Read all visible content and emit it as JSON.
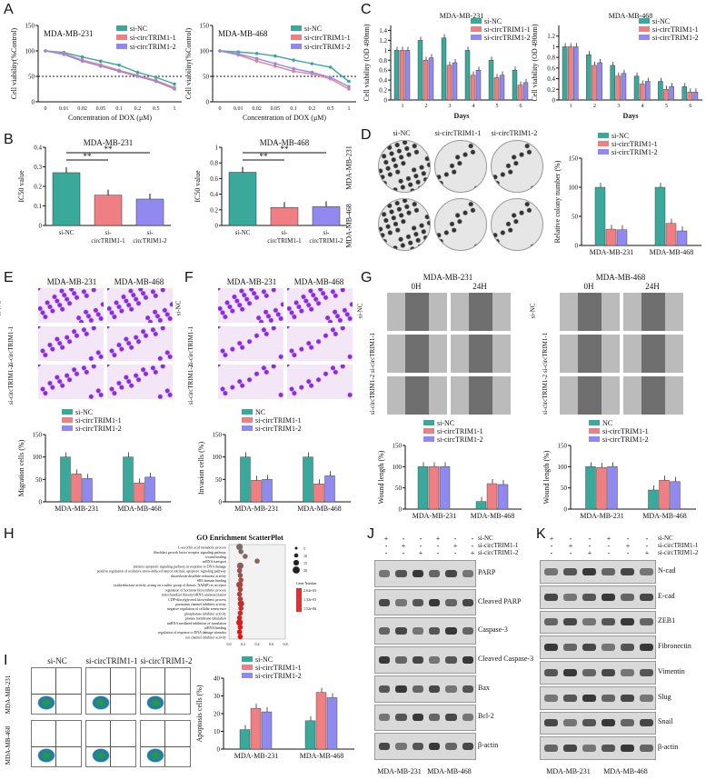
{
  "panel_letters": {
    "A": "A",
    "B": "B",
    "C": "C",
    "D": "D",
    "E": "E",
    "F": "F",
    "G": "G",
    "H": "H",
    "I": "I",
    "J": "J",
    "K": "K"
  },
  "colors": {
    "si_nc": "#3aa89a",
    "si_1": "#f07f83",
    "si_2": "#8f89f0"
  },
  "legend_si": [
    "si-NC",
    "si-circTRIM1-1",
    "si-circTRIM1-2"
  ],
  "legend_nc": [
    "NC",
    "si-circTRIM1-1",
    "si-circTRIM1-2"
  ],
  "chart_data": [
    {
      "id": "A1",
      "type": "line",
      "title": "MDA-MB-231",
      "ylabel": "Cell viability(%Control)",
      "xlabel": "Concentration of DOX (μM)",
      "x": [
        "0",
        "0.01",
        "0.02",
        "0.05",
        "0.1",
        "0.2",
        "0.5",
        "1"
      ],
      "ylim": [
        0,
        150
      ],
      "yticks": [
        0,
        50,
        100,
        150
      ],
      "series": [
        {
          "name": "si-NC",
          "values": [
            100,
            97,
            88,
            80,
            72,
            58,
            48,
            35
          ]
        },
        {
          "name": "si-circTRIM1-1",
          "values": [
            100,
            95,
            82,
            73,
            62,
            52,
            42,
            28
          ]
        },
        {
          "name": "si-circTRIM1-2",
          "values": [
            100,
            93,
            80,
            70,
            60,
            50,
            40,
            25
          ]
        }
      ]
    },
    {
      "id": "A2",
      "type": "line",
      "title": "MDA-MB-468",
      "ylabel": "Cell viability(%Control)",
      "xlabel": "Concentration of DOX (μM)",
      "x": [
        "0",
        "0.01",
        "0.02",
        "0.05",
        "0.1",
        "0.2",
        "0.5",
        "1"
      ],
      "ylim": [
        0,
        150
      ],
      "yticks": [
        0,
        50,
        100,
        150
      ],
      "series": [
        {
          "name": "si-NC",
          "values": [
            100,
            98,
            95,
            90,
            82,
            75,
            68,
            40
          ]
        },
        {
          "name": "si-circTRIM1-1",
          "values": [
            100,
            92,
            80,
            70,
            60,
            55,
            45,
            25
          ]
        },
        {
          "name": "si-circTRIM1-2",
          "values": [
            100,
            94,
            85,
            75,
            65,
            58,
            48,
            30
          ]
        }
      ]
    },
    {
      "id": "B1",
      "type": "bar",
      "title": "MDA-MB-231",
      "ylabel": "IC50 value",
      "categories": [
        "si-NC",
        "si-circTRIM1-1",
        "si-circTRIM1-2"
      ],
      "values": [
        0.27,
        0.155,
        0.135
      ],
      "ylim": [
        0,
        0.4
      ],
      "yticks": [
        0,
        0.1,
        0.2,
        0.3,
        0.4
      ]
    },
    {
      "id": "B2",
      "type": "bar",
      "title": "MDA-MB-468",
      "ylabel": "IC50 value",
      "categories": [
        "si-NC",
        "si-circTRIM1-1",
        "si-circTRIM1-2"
      ],
      "values": [
        0.68,
        0.23,
        0.24
      ],
      "ylim": [
        0,
        1.0
      ],
      "yticks": [
        0,
        0.2,
        0.4,
        0.6,
        0.8,
        1.0
      ]
    },
    {
      "id": "C1",
      "type": "bar",
      "title": "MDA-MB-231",
      "ylabel": "Cell viability (OD 490nm)",
      "xlabel": "Days",
      "categories": [
        "1",
        "2",
        "3",
        "4",
        "5",
        "6"
      ],
      "ylim": [
        0,
        1.5
      ],
      "yticks": [
        0,
        0.2,
        0.4,
        0.6,
        0.8,
        1.0,
        1.2,
        1.4
      ],
      "series": [
        {
          "name": "si-NC",
          "values": [
            1.0,
            1.2,
            1.25,
            1.0,
            0.8,
            0.6
          ]
        },
        {
          "name": "si-circTRIM1-1",
          "values": [
            1.0,
            0.8,
            0.7,
            0.5,
            0.45,
            0.3
          ]
        },
        {
          "name": "si-circTRIM1-2",
          "values": [
            1.0,
            0.85,
            0.75,
            0.6,
            0.5,
            0.35
          ]
        }
      ]
    },
    {
      "id": "C2",
      "type": "bar",
      "title": "MDA-MB-468",
      "ylabel": "Cell viability (OD 490nm)",
      "xlabel": "Days",
      "categories": [
        "1",
        "2",
        "3",
        "4",
        "5",
        "6"
      ],
      "ylim": [
        0,
        1.4
      ],
      "yticks": [
        0,
        0.2,
        0.4,
        0.6,
        0.8,
        1.0,
        1.2
      ],
      "series": [
        {
          "name": "si-NC",
          "values": [
            1.0,
            0.85,
            0.65,
            0.45,
            0.35,
            0.25
          ]
        },
        {
          "name": "si-circTRIM1-1",
          "values": [
            1.0,
            0.65,
            0.45,
            0.3,
            0.2,
            0.15
          ]
        },
        {
          "name": "si-circTRIM1-2",
          "values": [
            1.0,
            0.7,
            0.5,
            0.35,
            0.25,
            0.15
          ]
        }
      ]
    },
    {
      "id": "D",
      "type": "bar",
      "ylabel": "Relative colony number (%)",
      "categories": [
        "MDA-MB-231",
        "MDA-MB-468"
      ],
      "ylim": [
        0,
        150
      ],
      "yticks": [
        0,
        50,
        100,
        150
      ],
      "series": [
        {
          "name": "si-NC",
          "values": [
            100,
            100
          ]
        },
        {
          "name": "si-circTRIM1-1",
          "values": [
            28,
            38
          ]
        },
        {
          "name": "si-circTRIM1-2",
          "values": [
            27,
            25
          ]
        }
      ]
    },
    {
      "id": "E",
      "type": "bar",
      "ylabel": "Migration cells (%)",
      "categories": [
        "MDA-MB-231",
        "MDA-MB-468"
      ],
      "ylim": [
        0,
        150
      ],
      "yticks": [
        0,
        50,
        100,
        150
      ],
      "series": [
        {
          "name": "si-NC",
          "values": [
            100,
            100
          ]
        },
        {
          "name": "si-circTRIM1-1",
          "values": [
            62,
            42
          ]
        },
        {
          "name": "si-circTRIM1-2",
          "values": [
            52,
            55
          ]
        }
      ]
    },
    {
      "id": "F",
      "type": "bar",
      "ylabel": "Invasion cells (%)",
      "categories": [
        "MDA-MB-231",
        "MDA-MB-468"
      ],
      "ylim": [
        0,
        150
      ],
      "yticks": [
        0,
        50,
        100,
        150
      ],
      "series": [
        {
          "name": "NC",
          "values": [
            100,
            100
          ]
        },
        {
          "name": "si-circTRIM1-1",
          "values": [
            48,
            40
          ]
        },
        {
          "name": "si-circTRIM1-2",
          "values": [
            50,
            58
          ]
        }
      ]
    },
    {
      "id": "G",
      "type": "bar",
      "ylabel": "Wound length (%)",
      "categories": [
        "MDA-MB-231",
        "MDA-MB-468"
      ],
      "ylim": [
        0,
        150
      ],
      "yticks": [
        0,
        50,
        100,
        150
      ],
      "series": [
        {
          "name": "si-NC",
          "values": [
            100,
            18
          ]
        },
        {
          "name": "si-circTRIM1-1",
          "values": [
            100,
            60
          ]
        },
        {
          "name": "si-circTRIM1-2",
          "values": [
            100,
            58
          ]
        }
      ]
    },
    {
      "id": "G2",
      "type": "bar",
      "ylabel": "Wound length (%)",
      "categories": [
        "MDA-MB-231",
        "MDA-MB-468"
      ],
      "ylim": [
        0,
        150
      ],
      "yticks": [
        0,
        50,
        100,
        150
      ],
      "series": [
        {
          "name": "NC",
          "values": [
            100,
            45
          ]
        },
        {
          "name": "si-circTRIM1-1",
          "values": [
            98,
            68
          ]
        },
        {
          "name": "si-circTRIM1-2",
          "values": [
            100,
            65
          ]
        }
      ]
    },
    {
      "id": "I",
      "type": "bar",
      "ylabel": "Apoptosis cells (%)",
      "categories": [
        "MDA-MB-231",
        "MDA-MB-468"
      ],
      "ylim": [
        0,
        40
      ],
      "yticks": [
        0,
        10,
        20,
        30,
        40
      ],
      "series": [
        {
          "name": "si-NC",
          "values": [
            11,
            16
          ]
        },
        {
          "name": "si-circTRIM1-1",
          "values": [
            23,
            32
          ]
        },
        {
          "name": "si-circTRIM1-2",
          "values": [
            21,
            29
          ]
        }
      ]
    },
    {
      "id": "H",
      "type": "scatter",
      "title": "GO Enrichment ScatterPlot",
      "categories": [
        "L-ascorbic acid metabolic process",
        "fibroblast growth factor receptor signaling pathway",
        "wound healing",
        "mRNA transport",
        "intrinsic apoptotic signaling pathway in response to DNA damage",
        "positive regulation of oxidative stress-induced neuron intrinsic apoptotic signaling pathway",
        "thioredoxin-disulfide reductase activity",
        "SH3 domain binding",
        "oxidoreductase activity, acting on a sulfur group of donors, NAD(P) as acceptor",
        "regulation of hormone biosynthetic process",
        "mitochondrial threonyl-tRNA aminoacylation",
        "CDP-diacylglycerol biosynthetic process",
        "potassium channel inhibitor activity",
        "negative regulation of cellular senescence",
        "phosphatase inhibitor activity",
        "plasma membrane tubulation",
        "miRNA mediated inhibition of translation",
        "mRNA binding",
        "regulation of response to DNA damage stimulus",
        "ion channel inhibitor activity"
      ],
      "x": [
        0.15,
        0.17,
        0.23,
        0.4,
        0.16,
        0.15,
        0.16,
        0.17,
        0.15,
        0.16,
        0.15,
        0.16,
        0.17,
        0.17,
        0.16,
        0.15,
        0.15,
        0.16,
        0.15,
        0.16
      ],
      "size_legend": [
        "5",
        "10",
        "15",
        "20"
      ],
      "color_legend": [
        "2.64e-03",
        "1.32e-03",
        "1.52e-06"
      ],
      "size_title": "Gene Number",
      "xticks": [
        "0.0",
        "0.2",
        "0.4",
        "0.6",
        "0.8"
      ]
    }
  ],
  "labels": {
    "mda231": "MDA-MB-231",
    "mda468": "MDA-MB-468",
    "h0": "0H",
    "h24": "24H",
    "D_cols": [
      "si-NC",
      "si-circTRIM1-1",
      "si-circTRIM1-2"
    ],
    "E_rows": [
      "si-NC",
      "si-circTRIM1-1",
      "si-circTRIM1-2"
    ],
    "G_rows": [
      "si-NC",
      "si-circTRIM1-1",
      "si-circTRIM1-2"
    ],
    "I_cols": [
      "si-NC",
      "si-circTRIM1-1",
      "si-circTRIM1-2"
    ],
    "J_proteins": [
      "PARP",
      "Cleaved PARP",
      "Caspase-3",
      "Cleaved Caspase-3",
      "Bax",
      "Bcl-2",
      "β-actin"
    ],
    "K_proteins": [
      "N-cad",
      "E-cad",
      "ZEB1",
      "Fibronectin",
      "Vimentin",
      "Slug",
      "Snail",
      "β-actin"
    ],
    "wb_conditions": [
      "si-NC",
      "si-circTRIM1-1",
      "si-circTRIM1-2"
    ],
    "wb_signs": [
      [
        "+",
        "-",
        "-",
        "+",
        "-",
        "-"
      ],
      [
        "-",
        "+",
        "-",
        "-",
        "+",
        "-"
      ],
      [
        "-",
        "-",
        "+",
        "-",
        "-",
        "+"
      ]
    ]
  }
}
